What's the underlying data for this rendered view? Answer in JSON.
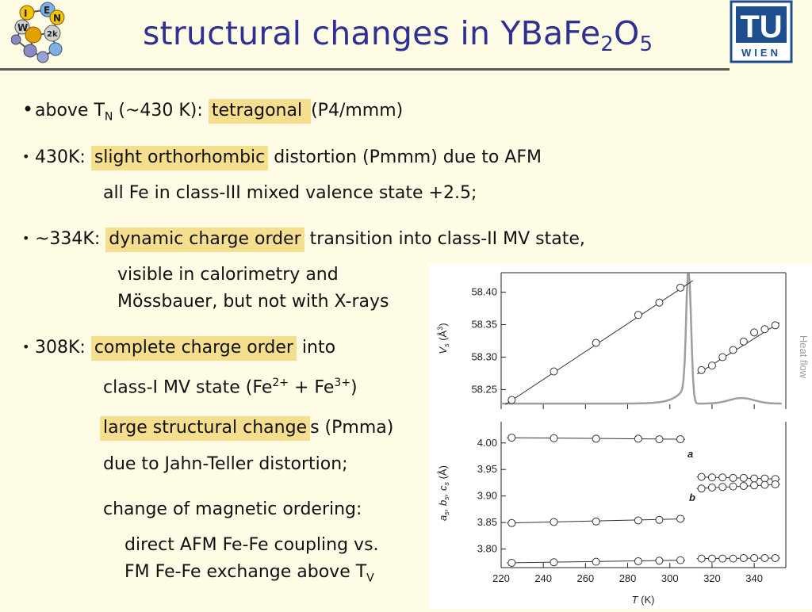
{
  "colors": {
    "title": "#2e3192",
    "highlight": "#f5df8f",
    "background": "#fffce6",
    "heatflow": "#9e9e9e"
  },
  "header": {
    "title_main": "structural changes in YBaFe",
    "title_sub1": "2",
    "title_o": "O",
    "title_sub2": "5",
    "logo_left_letters": [
      "I",
      "E",
      "N",
      "W",
      "2k"
    ],
    "logo_right_top": "TU",
    "logo_right_bottom": "WIEN"
  },
  "bullets": {
    "b1": {
      "pre": "above T",
      "sub": "N",
      "mid": " (~430 K): ",
      "hl": "tetragonal ",
      "post": " (P4/mmm)"
    },
    "b2": {
      "pre": "430K: ",
      "hl": "slight orthorhombic",
      "post": " distortion (Pmmm) due to AFM"
    },
    "b2_cont": "all Fe in class-III mixed valence state +2.5;",
    "b3": {
      "pre": "~334K: ",
      "hl": "dynamic charge order",
      "post": " transition into class-II MV state,"
    },
    "b3_cont1": "visible in calorimetry and",
    "b3_cont2": "Mössbauer, but not with X-rays",
    "b4": {
      "pre": "308K: ",
      "hl": "complete charge order",
      "post": " into"
    },
    "b4_cont1": {
      "pre": "class-I MV state (Fe",
      "sup1": "2+",
      "mid": " + Fe",
      "sup2": "3+",
      "post": ")"
    },
    "b4_cont2": {
      "hl": "large structural change",
      "post": "s (Pmma)"
    },
    "b4_cont3": "due to Jahn-Teller distortion;",
    "b4_cont4": "change of magnetic ordering:",
    "b4_cont5": "direct AFM Fe-Fe coupling vs.",
    "b4_cont6": {
      "pre": "FM Fe-Fe exchange above T",
      "sub": "V"
    }
  },
  "chart_data": [
    {
      "type": "scatter",
      "panel": "top",
      "ylabel_parts": [
        "V",
        "s",
        " (Å",
        "3",
        ")"
      ],
      "right_label": "Heat flow",
      "ylim": [
        58.22,
        58.43
      ],
      "yticks": [
        58.25,
        58.3,
        58.35,
        58.4
      ],
      "series": [
        {
          "values": [
            [
              225,
              58.234
            ],
            [
              245,
              58.278
            ],
            [
              265,
              58.322
            ],
            [
              285,
              58.365
            ],
            [
              295,
              58.384
            ],
            [
              305,
              58.407
            ]
          ]
        },
        {
          "values": [
            [
              315,
              58.28
            ],
            [
              320,
              58.287
            ],
            [
              325,
              58.3
            ],
            [
              330,
              58.311
            ],
            [
              335,
              58.324
            ],
            [
              340,
              58.338
            ],
            [
              345,
              58.343
            ],
            [
              350,
              58.349
            ]
          ]
        }
      ],
      "fit_lines": [
        [
          [
            222,
            58.227
          ],
          [
            311,
            58.418
          ]
        ],
        [
          [
            313,
            58.274
          ],
          [
            352,
            58.353
          ]
        ]
      ],
      "heat_flow": {
        "baseline_fraction": 0.04,
        "peak_temperature": 309,
        "bump_temperature": 334
      }
    },
    {
      "type": "scatter",
      "panel": "bottom",
      "ylabel_parts": [
        "a",
        "s",
        ", b",
        "s",
        ", c",
        "s",
        " (Å)"
      ],
      "xlabel_parts": [
        "T",
        " (K)"
      ],
      "xlim": [
        220,
        355
      ],
      "xticks": [
        220,
        240,
        260,
        280,
        300,
        320,
        340
      ],
      "ylim": [
        3.765,
        4.04
      ],
      "yticks": [
        3.8,
        3.85,
        3.9,
        3.95,
        4.0
      ],
      "annotations": [
        "a",
        "b"
      ],
      "series": [
        {
          "values": [
            [
              225,
              4.01
            ],
            [
              245,
              4.009
            ],
            [
              265,
              4.008
            ],
            [
              285,
              4.008
            ],
            [
              295,
              4.007
            ],
            [
              305,
              4.007
            ]
          ]
        },
        {
          "values": [
            [
              225,
              3.849
            ],
            [
              245,
              3.851
            ],
            [
              265,
              3.852
            ],
            [
              285,
              3.854
            ],
            [
              295,
              3.855
            ],
            [
              305,
              3.857
            ]
          ]
        },
        {
          "values": [
            [
              225,
              3.774
            ],
            [
              245,
              3.775
            ],
            [
              265,
              3.776
            ],
            [
              285,
              3.777
            ],
            [
              295,
              3.778
            ],
            [
              305,
              3.779
            ]
          ]
        },
        {
          "values": [
            [
              315,
              3.936
            ],
            [
              320,
              3.935
            ],
            [
              325,
              3.935
            ],
            [
              330,
              3.934
            ],
            [
              335,
              3.934
            ],
            [
              340,
              3.933
            ],
            [
              345,
              3.933
            ],
            [
              350,
              3.932
            ]
          ]
        },
        {
          "values": [
            [
              315,
              3.914
            ],
            [
              320,
              3.916
            ],
            [
              325,
              3.917
            ],
            [
              330,
              3.918
            ],
            [
              335,
              3.919
            ],
            [
              340,
              3.92
            ],
            [
              345,
              3.921
            ],
            [
              350,
              3.922
            ]
          ]
        },
        {
          "values": [
            [
              315,
              3.782
            ],
            [
              320,
              3.782
            ],
            [
              325,
              3.782
            ],
            [
              330,
              3.782
            ],
            [
              335,
              3.783
            ],
            [
              340,
              3.783
            ],
            [
              345,
              3.783
            ],
            [
              350,
              3.783
            ]
          ]
        }
      ]
    }
  ]
}
